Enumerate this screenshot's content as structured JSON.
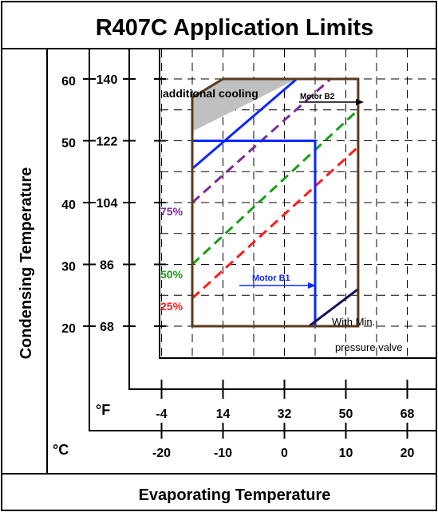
{
  "title": "R407C  Application Limits",
  "xlabel": "Evaporating Temperature",
  "ylabel": "Condensing Temperature",
  "unit_f": "°F",
  "unit_c": "°C",
  "colors": {
    "envelope": "#5a3a1c",
    "shaded": "#c0c0c0",
    "motor": "#0a28ff",
    "p75": "#7a2a9a",
    "p50": "#12a012",
    "p25": "#ff1a1a",
    "minvalve": "#14145a"
  },
  "chart_data": {
    "type": "line",
    "title": "R407C  Application Limits",
    "xlabel": "Evaporating Temperature",
    "ylabel": "Condensing Temperature",
    "x_ticks_c": [
      "-20",
      "-10",
      "0",
      "10",
      "20"
    ],
    "x_ticks_f": [
      "-4",
      "14",
      "32",
      "50",
      "68"
    ],
    "y_ticks_c": [
      "60",
      "50",
      "40",
      "30",
      "20"
    ],
    "y_ticks_f": [
      "140",
      "122",
      "104",
      "86",
      "68"
    ],
    "xlim_c": [
      -20,
      23
    ],
    "ylim_c": [
      10,
      60
    ],
    "grid": true,
    "envelope": [
      [
        -15,
        20
      ],
      [
        -15,
        57
      ],
      [
        -10,
        60
      ],
      [
        12,
        60
      ],
      [
        12,
        20
      ]
    ],
    "shaded_region": [
      [
        -15,
        51.5
      ],
      [
        -15,
        57
      ],
      [
        -10,
        60
      ],
      [
        2,
        60
      ]
    ],
    "lines": [
      {
        "key": "motor_b2",
        "style": "solid",
        "points": [
          [
            -15,
            45.5
          ],
          [
            2,
            60
          ]
        ]
      },
      {
        "key": "p75",
        "style": "dashed",
        "points": [
          [
            -15,
            40
          ],
          [
            7.5,
            60
          ]
        ]
      },
      {
        "key": "p50",
        "style": "dashed",
        "points": [
          [
            -15,
            30
          ],
          [
            12,
            55
          ]
        ]
      },
      {
        "key": "p25",
        "style": "dashed",
        "points": [
          [
            -15,
            24.5
          ],
          [
            12,
            49
          ]
        ]
      },
      {
        "key": "motor_b1_limit",
        "style": "solid",
        "points": [
          [
            -15,
            50
          ],
          [
            5,
            50
          ],
          [
            5,
            20
          ]
        ]
      },
      {
        "key": "min_valve",
        "style": "solid",
        "points": [
          [
            4,
            20
          ],
          [
            12,
            26
          ]
        ]
      }
    ],
    "annotations": [
      {
        "key": "additional_cooling",
        "text": "additional cooling"
      },
      {
        "key": "motor_b2",
        "text": "Motor B2"
      },
      {
        "key": "motor_b1",
        "text": "Motor B1"
      },
      {
        "key": "p75",
        "text": "75%"
      },
      {
        "key": "p50",
        "text": "50%"
      },
      {
        "key": "p25",
        "text": "25%"
      },
      {
        "key": "with_min",
        "text": "With Min."
      },
      {
        "key": "pressure_valve",
        "text": "pressure valve"
      }
    ]
  }
}
